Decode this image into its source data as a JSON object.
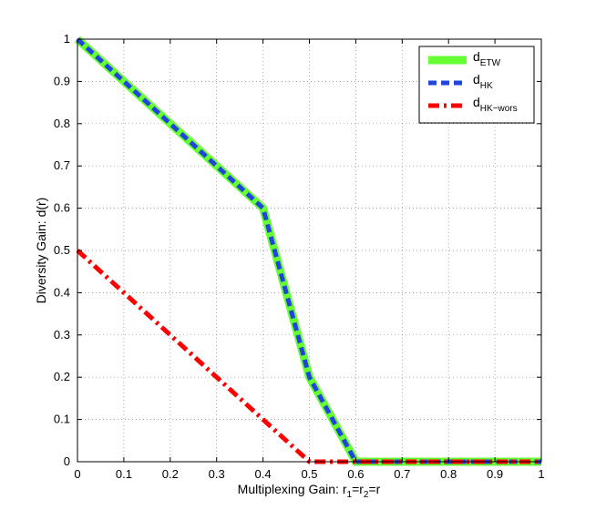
{
  "chart_data": {
    "type": "line",
    "title": "",
    "xlabel": {
      "main": "Multiplexing Gain: r",
      "sub1": "1",
      "eq1": "=r",
      "sub2": "2",
      "eq2": "=r"
    },
    "ylabel": "Diversity Gain: d(r)",
    "xlim": [
      0,
      1
    ],
    "ylim": [
      0,
      1
    ],
    "xticks": [
      "0",
      "0.1",
      "0.2",
      "0.3",
      "0.4",
      "0.5",
      "0.6",
      "0.7",
      "0.8",
      "0.9",
      "1"
    ],
    "yticks": [
      "0",
      "0.1",
      "0.2",
      "0.3",
      "0.4",
      "0.5",
      "0.6",
      "0.7",
      "0.8",
      "0.9",
      "1"
    ],
    "grid": true,
    "legend_position": "top-right",
    "series": [
      {
        "name": "d",
        "name_sub": "ETW",
        "color": "#66ff33",
        "style": "solid",
        "x": [
          0,
          0.4,
          0.5,
          0.6,
          1
        ],
        "y": [
          1,
          0.6,
          0.2,
          0,
          0
        ]
      },
      {
        "name": "d",
        "name_sub": "HK",
        "color": "#2244dd",
        "style": "dashed",
        "x": [
          0,
          0.4,
          0.5,
          0.6,
          1
        ],
        "y": [
          1,
          0.6,
          0.2,
          0,
          0
        ]
      },
      {
        "name": "d",
        "name_sub": "HK−wors",
        "color": "#ff0000",
        "style": "dashdot",
        "x": [
          0,
          0.5,
          1
        ],
        "y": [
          0.5,
          0,
          0
        ]
      }
    ]
  }
}
